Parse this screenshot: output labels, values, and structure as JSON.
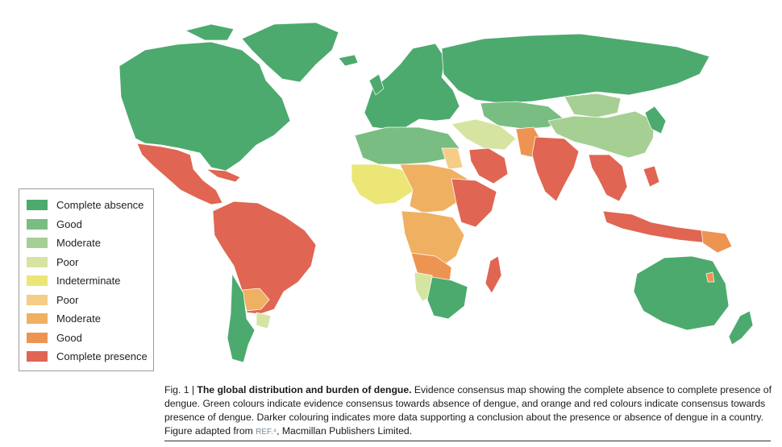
{
  "legend": {
    "items": [
      {
        "label": "Complete absence",
        "color": "#4caa6e"
      },
      {
        "label": "Good",
        "color": "#79bd82"
      },
      {
        "label": "Moderate",
        "color": "#a6cf93"
      },
      {
        "label": "Poor",
        "color": "#d6e4a2"
      },
      {
        "label": "Indeterminate",
        "color": "#ece676"
      },
      {
        "label": "Poor",
        "color": "#f5cd87"
      },
      {
        "label": "Moderate",
        "color": "#f0b062"
      },
      {
        "label": "Good",
        "color": "#ee9452"
      },
      {
        "label": "Complete presence",
        "color": "#e06553"
      }
    ]
  },
  "caption": {
    "fig_label": "Fig. 1 | ",
    "title": "The global distribution and burden of dengue.",
    "body": " Evidence consensus map showing the complete absence to complete presence of dengue. Green colours indicate evidence consensus towards absence of dengue, and orange and red colours indicate consensus towards presence of dengue. Darker colouring indicates more data supporting a conclusion about the presence or absence of dengue in a country. Figure adapted from ",
    "ref": "REF.⁴",
    "tail": ", Macmillan Publishers Limited."
  }
}
